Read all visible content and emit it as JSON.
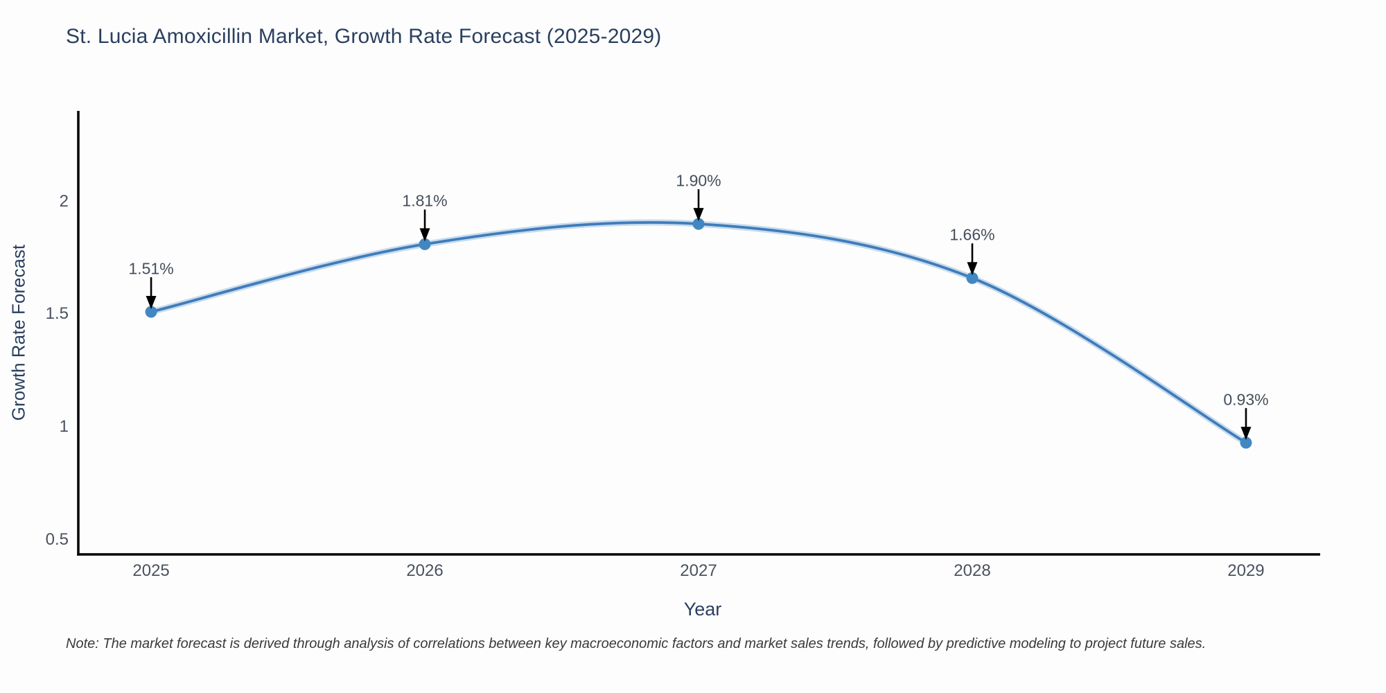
{
  "note": "Note: The market forecast is derived through analysis of correlations between key macroeconomic factors and market sales trends, followed by predictive modeling to project future sales.",
  "chart_data": {
    "type": "line",
    "line_shape": "spline",
    "title": "St. Lucia Amoxicillin Market, Growth Rate Forecast (2025-2029)",
    "xlabel": "Year",
    "ylabel": "Growth Rate Forecast",
    "x": [
      2025,
      2026,
      2027,
      2028,
      2029
    ],
    "values": [
      1.51,
      1.81,
      1.9,
      1.66,
      0.93
    ],
    "point_labels": [
      "1.51%",
      "1.81%",
      "1.90%",
      "1.66%",
      "0.93%"
    ],
    "x_tick_labels": [
      "2025",
      "2026",
      "2027",
      "2028",
      "2029"
    ],
    "y_ticks": [
      2,
      1.5,
      1,
      0.5
    ],
    "y_tick_labels": [
      "2",
      "1.5",
      "1",
      "0.5"
    ],
    "xlim": [
      2024.734,
      2029.271
    ],
    "ylim": [
      0.435,
      2.401
    ],
    "grid": false,
    "legend": "none",
    "line_color": "#3f7cba",
    "line_halo_color": "rgba(77,144,201,0.30)",
    "marker_color": "#4287c2",
    "axis_color": "#000000",
    "arrow_color": "#000000"
  }
}
